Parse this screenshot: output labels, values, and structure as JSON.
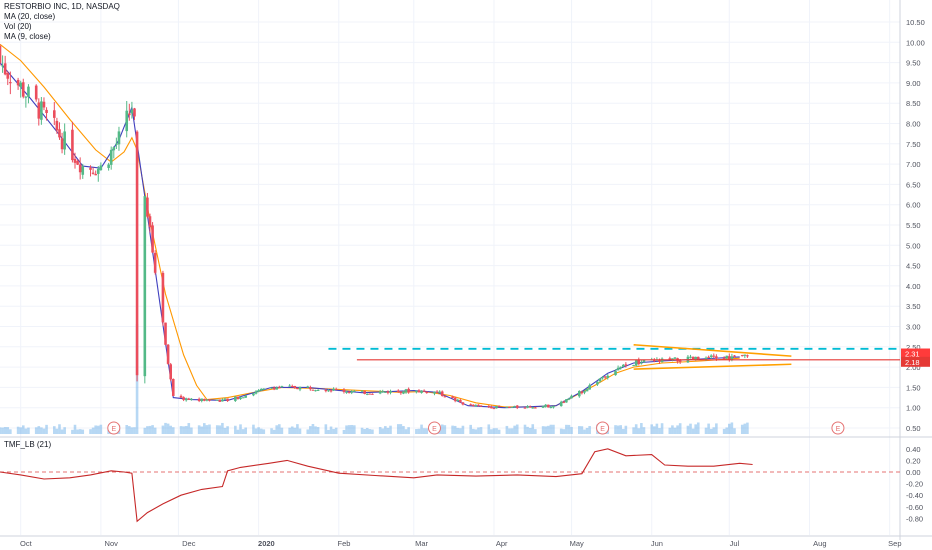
{
  "legend": {
    "symbol": "RESTORBIO INC, 1D, NASDAQ",
    "ma20": "MA (20, close)",
    "vol": "Vol (20)",
    "ma9": "MA (9, close)",
    "tmf": "TMF_LB (21)"
  },
  "colors": {
    "up": "#53b987",
    "down": "#eb4d5c",
    "ma20": "#ff9800",
    "ma9": "#3f3fbf",
    "volume": "#5fa8e6",
    "tmf": "#c62828",
    "cyan_line": "#00bcd4",
    "red_line": "#e53935",
    "triangle": "#ffa000",
    "badge_upper": "#ff3b3b",
    "badge_lower": "#e53935",
    "earnings": "#e57373"
  },
  "price_axis": {
    "ticks": [
      "10.50",
      "10.00",
      "9.50",
      "9.00",
      "8.50",
      "8.00",
      "7.50",
      "7.00",
      "6.50",
      "6.00",
      "5.50",
      "5.00",
      "4.50",
      "4.00",
      "3.50",
      "3.00",
      "2.50",
      "2.00",
      "1.50",
      "1.00",
      "0.50"
    ],
    "badges": [
      "2.31",
      "2.18"
    ]
  },
  "tmf_axis": {
    "ticks": [
      "0.40",
      "0.20",
      "0.00",
      "-0.20",
      "-0.40",
      "-0.60",
      "-0.80"
    ]
  },
  "time_axis": {
    "labels": [
      "Oct",
      "Nov",
      "Dec",
      "2020",
      "Feb",
      "Mar",
      "Apr",
      "May",
      "Jun",
      "Jul",
      "Aug",
      "Sep"
    ]
  },
  "earnings_markers": [
    "E",
    "E",
    "E",
    "E"
  ],
  "chart_data": {
    "type": "candlestick",
    "title": "RESTORBIO INC, 1D, NASDAQ",
    "ylim": [
      0.5,
      10.5
    ],
    "x_range": [
      "2019-09-23",
      "2020-09-05"
    ],
    "series": [
      {
        "name": "MA (20, close)",
        "points": [
          [
            "2019-09-23",
            9.95
          ],
          [
            "2019-10-01",
            9.55
          ],
          [
            "2019-10-10",
            8.9
          ],
          [
            "2019-10-20",
            8.1
          ],
          [
            "2019-10-30",
            7.35
          ],
          [
            "2019-11-05",
            7.05
          ],
          [
            "2019-11-10",
            7.3
          ],
          [
            "2019-11-13",
            7.65
          ],
          [
            "2019-11-15",
            7.35
          ],
          [
            "2019-11-20",
            5.6
          ],
          [
            "2019-11-26",
            3.8
          ],
          [
            "2019-12-03",
            2.3
          ],
          [
            "2019-12-08",
            1.55
          ],
          [
            "2019-12-12",
            1.2
          ],
          [
            "2019-12-20",
            1.25
          ],
          [
            "2020-01-01",
            1.4
          ],
          [
            "2020-01-10",
            1.5
          ],
          [
            "2020-01-25",
            1.47
          ],
          [
            "2020-02-10",
            1.42
          ],
          [
            "2020-02-25",
            1.38
          ],
          [
            "2020-03-05",
            1.4
          ],
          [
            "2020-03-15",
            1.3
          ],
          [
            "2020-03-25",
            1.12
          ],
          [
            "2020-04-05",
            1.02
          ],
          [
            "2020-04-15",
            1.02
          ],
          [
            "2020-04-25",
            1.05
          ],
          [
            "2020-05-01",
            1.25
          ],
          [
            "2020-05-10",
            1.55
          ],
          [
            "2020-05-18",
            1.85
          ],
          [
            "2020-05-25",
            2.0
          ],
          [
            "2020-06-05",
            2.1
          ],
          [
            "2020-06-20",
            2.15
          ],
          [
            "2020-07-05",
            2.22
          ]
        ]
      },
      {
        "name": "MA (9, close)",
        "points": [
          [
            "2019-09-23",
            9.5
          ],
          [
            "2019-10-05",
            8.6
          ],
          [
            "2019-10-15",
            7.8
          ],
          [
            "2019-10-25",
            6.95
          ],
          [
            "2019-11-01",
            6.9
          ],
          [
            "2019-11-08",
            7.6
          ],
          [
            "2019-11-13",
            8.4
          ],
          [
            "2019-11-18",
            6.2
          ],
          [
            "2019-11-24",
            3.5
          ],
          [
            "2019-11-29",
            1.25
          ],
          [
            "2019-12-06",
            1.2
          ],
          [
            "2019-12-20",
            1.18
          ],
          [
            "2020-01-06",
            1.5
          ],
          [
            "2020-01-20",
            1.5
          ],
          [
            "2020-02-10",
            1.37
          ],
          [
            "2020-03-01",
            1.42
          ],
          [
            "2020-03-10",
            1.38
          ],
          [
            "2020-03-22",
            1.05
          ],
          [
            "2020-04-05",
            1.0
          ],
          [
            "2020-04-25",
            1.05
          ],
          [
            "2020-05-05",
            1.4
          ],
          [
            "2020-05-15",
            1.85
          ],
          [
            "2020-05-25",
            2.1
          ],
          [
            "2020-06-05",
            2.15
          ],
          [
            "2020-06-20",
            2.2
          ],
          [
            "2020-07-05",
            2.25
          ]
        ]
      },
      {
        "name": "TMF_LB (21)",
        "points": [
          [
            "2019-09-23",
            0.0
          ],
          [
            "2019-10-01",
            -0.05
          ],
          [
            "2019-10-10",
            -0.12
          ],
          [
            "2019-10-20",
            -0.1
          ],
          [
            "2019-10-28",
            -0.05
          ],
          [
            "2019-11-05",
            0.02
          ],
          [
            "2019-11-10",
            0.0
          ],
          [
            "2019-11-13",
            -0.02
          ],
          [
            "2019-11-15",
            -0.85
          ],
          [
            "2019-11-19",
            -0.7
          ],
          [
            "2019-11-25",
            -0.55
          ],
          [
            "2019-12-02",
            -0.4
          ],
          [
            "2019-12-10",
            -0.3
          ],
          [
            "2019-12-18",
            -0.25
          ],
          [
            "2019-12-20",
            0.02
          ],
          [
            "2019-12-25",
            0.08
          ],
          [
            "2020-01-05",
            0.15
          ],
          [
            "2020-01-12",
            0.2
          ],
          [
            "2020-01-20",
            0.1
          ],
          [
            "2020-02-01",
            -0.02
          ],
          [
            "2020-02-15",
            -0.06
          ],
          [
            "2020-03-01",
            -0.1
          ],
          [
            "2020-03-10",
            -0.05
          ],
          [
            "2020-03-25",
            -0.07
          ],
          [
            "2020-04-10",
            -0.05
          ],
          [
            "2020-04-25",
            -0.08
          ],
          [
            "2020-05-05",
            -0.03
          ],
          [
            "2020-05-10",
            0.35
          ],
          [
            "2020-05-15",
            0.4
          ],
          [
            "2020-05-22",
            0.28
          ],
          [
            "2020-06-01",
            0.3
          ],
          [
            "2020-06-06",
            0.12
          ],
          [
            "2020-06-15",
            0.1
          ],
          [
            "2020-06-25",
            0.1
          ],
          [
            "2020-07-05",
            0.15
          ],
          [
            "2020-07-10",
            0.13
          ]
        ]
      }
    ],
    "drawings": {
      "cyan_dashed_resistance": 2.45,
      "red_horizontal": 2.18,
      "triangle_upper": [
        [
          "2020-05-25",
          2.55
        ],
        [
          "2020-07-25",
          2.27
        ]
      ],
      "triangle_lower": [
        [
          "2020-05-25",
          1.95
        ],
        [
          "2020-07-25",
          2.07
        ]
      ]
    }
  }
}
